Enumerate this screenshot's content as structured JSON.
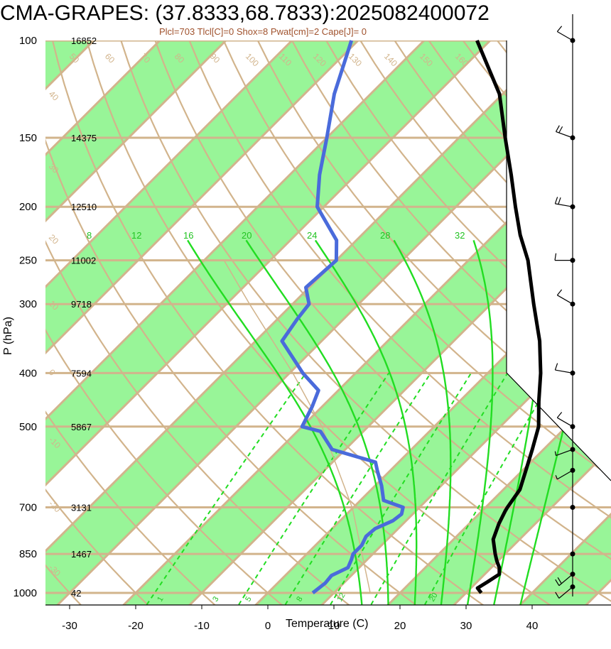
{
  "chart_data": {
    "type": "skew-t",
    "title": "CMA-GRAPES: (37.8333,68.7833):2025082400072",
    "subtitle": "Plcl=703 Tlcl[C]=0 Shox=8 Pwat[cm]=2 Cape[J]= 0",
    "xlabel": "Temperature (C)",
    "ylabel": "P (hPa)",
    "xlim": [
      -34,
      50
    ],
    "ylim": [
      1050,
      100
    ],
    "y_scale": "log",
    "x_ticks": [
      -30,
      -20,
      -10,
      0,
      10,
      20,
      30,
      40
    ],
    "pressure_levels": [
      {
        "p": 100,
        "label": "100",
        "height": "16852"
      },
      {
        "p": 150,
        "label": "150",
        "height": "14375"
      },
      {
        "p": 200,
        "label": "200",
        "height": "12510"
      },
      {
        "p": 250,
        "label": "250",
        "height": "11002"
      },
      {
        "p": 300,
        "label": "300",
        "height": "9718"
      },
      {
        "p": 400,
        "label": "400",
        "height": "7594"
      },
      {
        "p": 500,
        "label": "500",
        "height": "5867"
      },
      {
        "p": 700,
        "label": "700",
        "height": "3131"
      },
      {
        "p": 850,
        "label": "850",
        "height": "1467"
      },
      {
        "p": 1000,
        "label": "1000",
        "height": "42"
      }
    ],
    "temperature_profile": [
      {
        "p": 1000,
        "t": 32.3
      },
      {
        "p": 980,
        "t": 31.0
      },
      {
        "p": 955,
        "t": 31.6
      },
      {
        "p": 925,
        "t": 32.2
      },
      {
        "p": 900,
        "t": 31.2
      },
      {
        "p": 875,
        "t": 29.8
      },
      {
        "p": 850,
        "t": 28.5
      },
      {
        "p": 800,
        "t": 26.0
      },
      {
        "p": 750,
        "t": 24.5
      },
      {
        "p": 710,
        "t": 23.5
      },
      {
        "p": 700,
        "t": 23.3
      },
      {
        "p": 650,
        "t": 22.5
      },
      {
        "p": 600,
        "t": 20.5
      },
      {
        "p": 550,
        "t": 18.3
      },
      {
        "p": 500,
        "t": 15.8
      },
      {
        "p": 450,
        "t": 12.0
      },
      {
        "p": 400,
        "t": 8.0
      },
      {
        "p": 350,
        "t": 3.0
      },
      {
        "p": 300,
        "t": -3.5
      },
      {
        "p": 250,
        "t": -11.0
      },
      {
        "p": 225,
        "t": -16.0
      },
      {
        "p": 200,
        "t": -21.0
      },
      {
        "p": 175,
        "t": -26.5
      },
      {
        "p": 150,
        "t": -33.0
      },
      {
        "p": 125,
        "t": -40.5
      },
      {
        "p": 100,
        "t": -52.0
      }
    ],
    "dewpoint_profile": [
      {
        "p": 1000,
        "td": 6.8
      },
      {
        "p": 960,
        "td": 7.2
      },
      {
        "p": 930,
        "td": 7.0
      },
      {
        "p": 900,
        "td": 8.3
      },
      {
        "p": 870,
        "td": 7.6
      },
      {
        "p": 850,
        "td": 7.0
      },
      {
        "p": 820,
        "td": 7.0
      },
      {
        "p": 790,
        "td": 6.3
      },
      {
        "p": 765,
        "td": 6.5
      },
      {
        "p": 740,
        "td": 8.0
      },
      {
        "p": 720,
        "td": 8.3
      },
      {
        "p": 700,
        "td": 7.5
      },
      {
        "p": 680,
        "td": 3.5
      },
      {
        "p": 640,
        "td": 1.0
      },
      {
        "p": 600,
        "td": -2.0
      },
      {
        "p": 580,
        "td": -3.5
      },
      {
        "p": 550,
        "td": -12.0
      },
      {
        "p": 510,
        "td": -16.5
      },
      {
        "p": 500,
        "td": -20.0
      },
      {
        "p": 460,
        "td": -21.5
      },
      {
        "p": 430,
        "td": -23.0
      },
      {
        "p": 400,
        "td": -28.0
      },
      {
        "p": 350,
        "td": -36.0
      },
      {
        "p": 320,
        "td": -37.0
      },
      {
        "p": 300,
        "td": -37.5
      },
      {
        "p": 280,
        "td": -40.5
      },
      {
        "p": 250,
        "td": -40.0
      },
      {
        "p": 230,
        "td": -43.0
      },
      {
        "p": 200,
        "td": -51.0
      },
      {
        "p": 175,
        "td": -55.5
      },
      {
        "p": 150,
        "td": -60.0
      },
      {
        "p": 125,
        "td": -65.5
      },
      {
        "p": 100,
        "td": -71.0
      }
    ],
    "parcel_path": [
      {
        "p": 1000,
        "t": 15.5
      },
      {
        "p": 703,
        "t": 0.0
      },
      {
        "p": 500,
        "t": -17.0
      },
      {
        "p": 400,
        "t": -29.5
      },
      {
        "p": 300,
        "t": -46.5
      },
      {
        "p": 250,
        "t": -57.0
      }
    ],
    "isotherm_labels": [
      "50",
      "60",
      "70",
      "80",
      "90",
      "100",
      "110",
      "120",
      "130",
      "140",
      "150",
      "160"
    ],
    "isotherm_side_labels": [
      "30",
      "20",
      "10",
      "0",
      "-10",
      "-20",
      "-30",
      "-40"
    ],
    "isotherm_edge_labels": [
      "40",
      "30",
      "20",
      "10",
      "0",
      "-10",
      "-20",
      "-30"
    ],
    "moist_adiabat_labels": [
      "8",
      "12",
      "16",
      "20",
      "24",
      "28",
      "32"
    ],
    "mixing_ratio_labels": [
      "1",
      "3",
      "5",
      "8",
      "12",
      "20"
    ],
    "wind_profile": [
      {
        "p": 100,
        "speed": 10,
        "dir": 300
      },
      {
        "p": 150,
        "speed": 15,
        "dir": 290
      },
      {
        "p": 200,
        "speed": 15,
        "dir": 280
      },
      {
        "p": 250,
        "speed": 10,
        "dir": 270
      },
      {
        "p": 300,
        "speed": 10,
        "dir": 300
      },
      {
        "p": 400,
        "speed": 10,
        "dir": 280
      },
      {
        "p": 500,
        "speed": 10,
        "dir": 300
      },
      {
        "p": 550,
        "speed": 5,
        "dir": 250
      },
      {
        "p": 600,
        "speed": 5,
        "dir": 240
      },
      {
        "p": 700,
        "speed": 0,
        "dir": 0
      },
      {
        "p": 850,
        "speed": 0,
        "dir": 0
      },
      {
        "p": 925,
        "speed": 15,
        "dir": 230
      },
      {
        "p": 975,
        "speed": 10,
        "dir": 230
      }
    ],
    "colors": {
      "temperature": "#000000",
      "dewpoint": "#4a6bdb",
      "isobar": "#d2b48c",
      "isotherm": "#d2b48c",
      "band": "#98f598",
      "moist_adiabat": "#22dd22",
      "mixing_ratio": "#22dd22",
      "parcel": "#d2b48c",
      "wind": "#000000"
    }
  }
}
